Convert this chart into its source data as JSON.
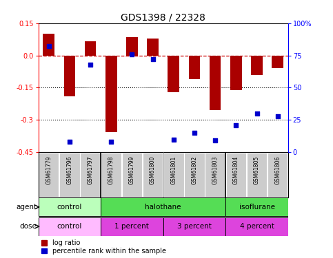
{
  "title": "GDS1398 / 22328",
  "samples": [
    "GSM61779",
    "GSM61796",
    "GSM61797",
    "GSM61798",
    "GSM61799",
    "GSM61800",
    "GSM61801",
    "GSM61802",
    "GSM61803",
    "GSM61804",
    "GSM61805",
    "GSM61806"
  ],
  "log_ratio": [
    0.1,
    -0.19,
    0.065,
    -0.355,
    0.085,
    0.08,
    -0.17,
    -0.11,
    -0.255,
    -0.16,
    -0.09,
    -0.06
  ],
  "percentile": [
    82,
    8,
    68,
    8,
    76,
    72,
    10,
    15,
    9,
    21,
    30,
    28
  ],
  "ylim": [
    -0.45,
    0.15
  ],
  "yticks_left": [
    -0.45,
    -0.3,
    -0.15,
    0.0,
    0.15
  ],
  "yticks_right": [
    0,
    25,
    50,
    75,
    100
  ],
  "hlines": [
    -0.15,
    -0.3
  ],
  "bar_color": "#aa0000",
  "dot_color": "#0000cc",
  "dashed_line_color": "#cc0000",
  "agent_groups": [
    {
      "label": "control",
      "start": 0,
      "end": 3,
      "color": "#bbffbb"
    },
    {
      "label": "halothane",
      "start": 3,
      "end": 9,
      "color": "#55dd55"
    },
    {
      "label": "isoflurane",
      "start": 9,
      "end": 12,
      "color": "#55dd55"
    }
  ],
  "dose_groups": [
    {
      "label": "control",
      "start": 0,
      "end": 3,
      "color": "#ffbbff"
    },
    {
      "label": "1 percent",
      "start": 3,
      "end": 6,
      "color": "#dd44dd"
    },
    {
      "label": "3 percent",
      "start": 6,
      "end": 9,
      "color": "#dd44dd"
    },
    {
      "label": "4 percent",
      "start": 9,
      "end": 12,
      "color": "#dd44dd"
    }
  ],
  "legend_red": "log ratio",
  "legend_blue": "percentile rank within the sample",
  "bg_color": "#ffffff",
  "bar_width": 0.55
}
